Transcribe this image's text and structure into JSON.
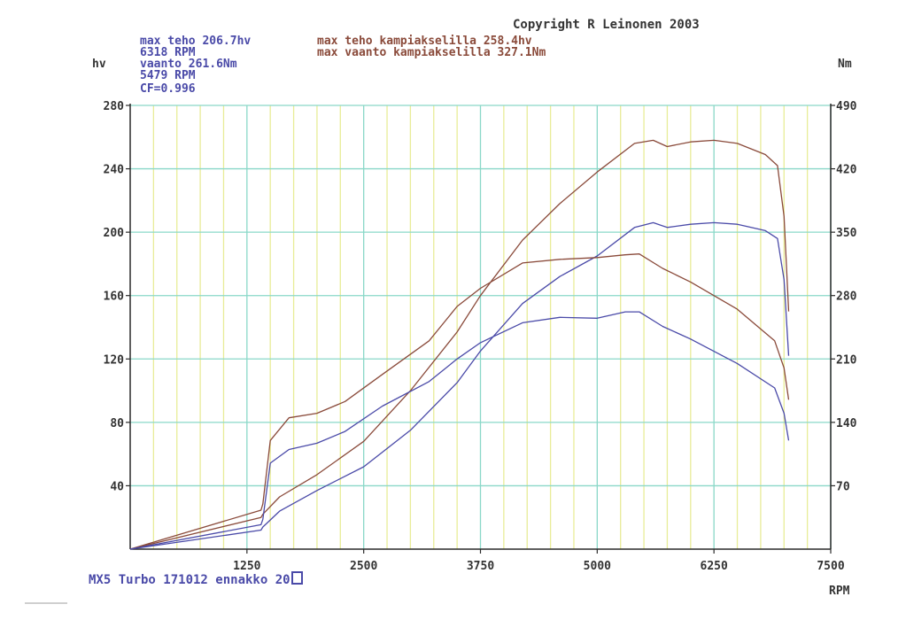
{
  "header": {
    "copyright": "Copyright R Leinonen 2003",
    "blue_lines": [
      "max teho 206.7hv",
      "6318 RPM",
      "vaanto 261.6Nm",
      "5479 RPM",
      "CF=0.996"
    ],
    "brown_lines": [
      "max teho kampiakselilla 258.4hv",
      "max vaanto kampiakselilla 327.1Nm"
    ]
  },
  "footer": {
    "caption": "MX5 Turbo 171012 ennakko 20"
  },
  "colors": {
    "blue": "#4a4aa8",
    "brown": "#8a4a3a",
    "grid_major": "#8ad8c8",
    "grid_minor": "#e8ec98"
  },
  "chart_data": {
    "type": "line",
    "xlabel": "RPM",
    "ylabel_left": "hv",
    "ylabel_right": "Nm",
    "xlim": [
      0,
      7500
    ],
    "ylim_left": [
      0,
      280
    ],
    "ylim_right": [
      0,
      490
    ],
    "x_ticks": [
      1250,
      2500,
      3750,
      5000,
      6250,
      7500
    ],
    "y_ticks_left": [
      40,
      80,
      120,
      160,
      200,
      240,
      280
    ],
    "y_ticks_right": [
      70,
      140,
      210,
      280,
      350,
      420,
      490
    ],
    "grid": true,
    "series": [
      {
        "axis": "left",
        "color": "brown",
        "x": [
          0,
          1400,
          1420,
          1600,
          2000,
          2500,
          3000,
          3500,
          3750,
          4200,
          4600,
          5000,
          5400,
          5600,
          5750,
          6000,
          6250,
          6500,
          6800,
          6930,
          7000,
          7050
        ],
        "y": [
          0,
          20,
          22,
          33,
          47,
          68,
          100,
          137,
          160,
          195,
          218,
          238,
          256,
          258,
          254,
          257,
          258,
          256,
          249,
          242,
          210,
          150
        ]
      },
      {
        "axis": "left",
        "color": "blue",
        "x": [
          0,
          1400,
          1420,
          1600,
          2000,
          2500,
          3000,
          3500,
          3750,
          4200,
          4600,
          5000,
          5400,
          5600,
          5750,
          6000,
          6250,
          6500,
          6800,
          6930,
          7000,
          7050
        ],
        "y": [
          0,
          12,
          14,
          24,
          37,
          52,
          75,
          105,
          125,
          155,
          172,
          185,
          203,
          206,
          203,
          205,
          206,
          205,
          201,
          196,
          170,
          122
        ]
      },
      {
        "axis": "right",
        "color": "brown",
        "x": [
          0,
          1400,
          1420,
          1500,
          1700,
          2000,
          2300,
          2700,
          3200,
          3500,
          3750,
          4200,
          4600,
          5000,
          5300,
          5450,
          5700,
          6000,
          6500,
          6900,
          7000,
          7050
        ],
        "y": [
          0,
          43,
          50,
          120,
          145,
          150,
          163,
          193,
          230,
          268,
          288,
          316,
          320,
          322,
          325,
          326,
          310,
          295,
          265,
          230,
          200,
          165
        ]
      },
      {
        "axis": "right",
        "color": "blue",
        "x": [
          0,
          1400,
          1420,
          1500,
          1700,
          2000,
          2300,
          2700,
          3200,
          3500,
          3750,
          4200,
          4600,
          5000,
          5300,
          5450,
          5700,
          6000,
          6500,
          6900,
          7000,
          7050
        ],
        "y": [
          0,
          27,
          33,
          95,
          110,
          117,
          130,
          158,
          185,
          210,
          228,
          250,
          256,
          255,
          262,
          262,
          246,
          232,
          205,
          178,
          150,
          120
        ]
      }
    ]
  }
}
